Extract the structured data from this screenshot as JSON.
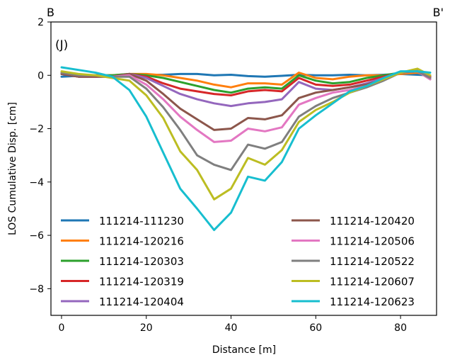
{
  "chart_data": {
    "type": "line",
    "panel_label": "(J)",
    "corner_left": "B",
    "corner_right": "B'",
    "xlabel": "Distance [m]",
    "ylabel": "LOS Cumulative Disp. [cm]",
    "xlim": [
      -2.5,
      88.5
    ],
    "ylim": [
      -9,
      2
    ],
    "xticks": [
      0,
      20,
      40,
      60,
      80
    ],
    "yticks": [
      2,
      0,
      -2,
      -4,
      -6,
      -8
    ],
    "x": [
      0,
      4,
      8,
      12,
      16,
      20,
      24,
      28,
      32,
      36,
      40,
      44,
      48,
      52,
      56,
      60,
      64,
      68,
      72,
      76,
      80,
      84,
      87
    ],
    "series": [
      {
        "name": "111214-111230",
        "color": "#1f77b4",
        "values": [
          -0.05,
          -0.02,
          0.0,
          0.0,
          0.02,
          0.02,
          0.02,
          0.05,
          0.05,
          0.0,
          0.02,
          -0.03,
          -0.05,
          -0.02,
          0.02,
          0.0,
          0.0,
          0.02,
          0.0,
          0.02,
          0.05,
          0.02,
          0.0
        ]
      },
      {
        "name": "111214-120216",
        "color": "#ff7f0e",
        "values": [
          0.05,
          0.0,
          0.0,
          0.0,
          0.05,
          0.05,
          0.0,
          -0.1,
          -0.2,
          -0.35,
          -0.45,
          -0.3,
          -0.3,
          -0.35,
          0.1,
          -0.1,
          -0.15,
          -0.05,
          0.0,
          0.0,
          0.05,
          0.1,
          -0.05
        ]
      },
      {
        "name": "111214-120303",
        "color": "#2ca02c",
        "values": [
          0.05,
          -0.02,
          0.0,
          0.0,
          0.05,
          0.0,
          -0.1,
          -0.25,
          -0.4,
          -0.55,
          -0.65,
          -0.5,
          -0.45,
          -0.5,
          0.0,
          -0.2,
          -0.3,
          -0.25,
          -0.1,
          0.0,
          0.1,
          0.15,
          -0.05
        ]
      },
      {
        "name": "111214-120319",
        "color": "#d62728",
        "values": [
          0.05,
          -0.05,
          -0.05,
          -0.05,
          0.05,
          -0.05,
          -0.3,
          -0.5,
          -0.6,
          -0.7,
          -0.75,
          -0.6,
          -0.55,
          -0.6,
          -0.1,
          -0.35,
          -0.4,
          -0.35,
          -0.2,
          -0.05,
          0.1,
          0.15,
          -0.05
        ]
      },
      {
        "name": "111214-120404",
        "color": "#9467bd",
        "values": [
          0.05,
          -0.05,
          -0.05,
          -0.05,
          0.05,
          -0.1,
          -0.4,
          -0.7,
          -0.9,
          -1.05,
          -1.15,
          -1.05,
          -1.0,
          -0.9,
          -0.25,
          -0.5,
          -0.55,
          -0.45,
          -0.3,
          -0.1,
          0.1,
          0.2,
          -0.1
        ]
      },
      {
        "name": "111214-120420",
        "color": "#8c564b",
        "values": [
          0.05,
          -0.05,
          -0.05,
          -0.05,
          0.05,
          -0.2,
          -0.7,
          -1.25,
          -1.65,
          -2.05,
          -2.0,
          -1.6,
          -1.65,
          -1.5,
          -0.85,
          -0.65,
          -0.55,
          -0.45,
          -0.35,
          -0.15,
          0.1,
          0.15,
          -0.15
        ]
      },
      {
        "name": "111214-120506",
        "color": "#e377c2",
        "values": [
          0.1,
          0.0,
          0.0,
          -0.05,
          0.0,
          -0.35,
          -0.9,
          -1.55,
          -2.05,
          -2.5,
          -2.45,
          -2.0,
          -2.1,
          -1.95,
          -1.1,
          -0.85,
          -0.65,
          -0.55,
          -0.4,
          -0.15,
          0.1,
          0.15,
          -0.15
        ]
      },
      {
        "name": "111214-120522",
        "color": "#7f7f7f",
        "values": [
          0.1,
          0.0,
          0.0,
          -0.05,
          -0.05,
          -0.5,
          -1.2,
          -2.05,
          -3.0,
          -3.35,
          -3.55,
          -2.6,
          -2.75,
          -2.5,
          -1.55,
          -1.15,
          -0.85,
          -0.65,
          -0.45,
          -0.2,
          0.1,
          0.15,
          -0.1
        ]
      },
      {
        "name": "111214-120607",
        "color": "#bcbd22",
        "values": [
          0.15,
          0.05,
          0.0,
          -0.1,
          -0.2,
          -0.75,
          -1.6,
          -2.85,
          -3.55,
          -4.65,
          -4.25,
          -3.1,
          -3.35,
          -2.8,
          -1.75,
          -1.3,
          -1.0,
          -0.65,
          -0.4,
          -0.15,
          0.1,
          0.25,
          0.0
        ]
      },
      {
        "name": "111214-120623",
        "color": "#17becf",
        "values": [
          0.3,
          0.2,
          0.1,
          -0.05,
          -0.55,
          -1.55,
          -2.9,
          -4.25,
          -5.0,
          -5.8,
          -5.15,
          -3.8,
          -3.95,
          -3.25,
          -2.0,
          -1.5,
          -1.05,
          -0.6,
          -0.4,
          -0.1,
          0.15,
          0.15,
          0.1
        ]
      }
    ],
    "legend_position": "lower-center, two columns",
    "grid": false
  }
}
